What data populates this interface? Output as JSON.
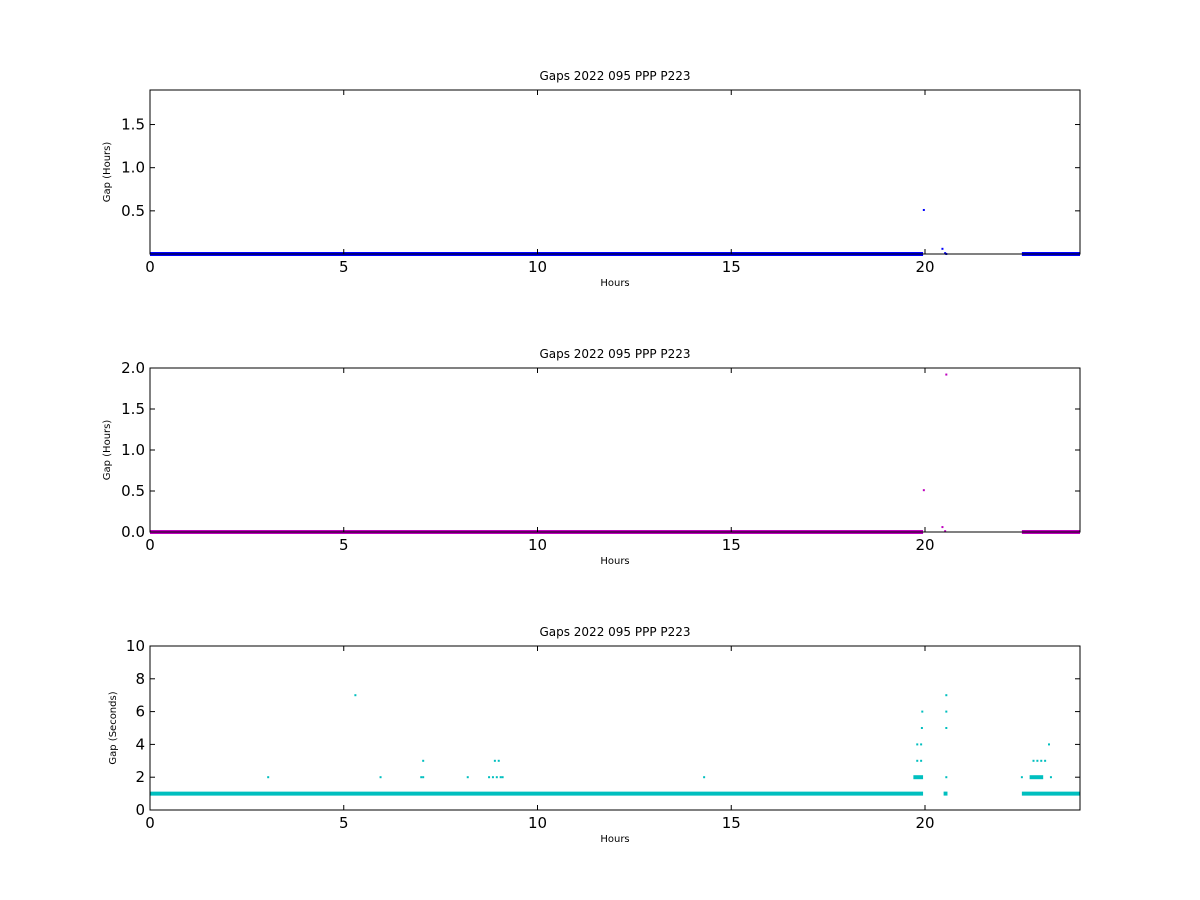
{
  "chart_data": [
    {
      "type": "scatter",
      "title": "Gaps 2022 095 PPP  P223",
      "xlabel": "Hours",
      "ylabel": "Gap (Hours)",
      "xlim": [
        0,
        24
      ],
      "ylim": [
        0,
        1.9
      ],
      "xticks": [
        0,
        5,
        10,
        15,
        20
      ],
      "yticks": [
        0.5,
        1.0,
        1.5
      ],
      "xtick_labels": [
        "0",
        "5",
        "10",
        "15",
        "20"
      ],
      "ytick_labels": [
        "0.5",
        "1.0",
        "1.5"
      ],
      "color": "#0000ff",
      "grid": false,
      "runs": [
        {
          "x_start": 0.0,
          "x_end": 19.95,
          "y": 0.0003
        },
        {
          "x_start": 22.5,
          "x_end": 24.0,
          "y": 0.0003
        }
      ],
      "points": [
        {
          "x": 19.97,
          "y": 0.51
        },
        {
          "x": 20.45,
          "y": 0.06
        },
        {
          "x": 20.52,
          "y": 0.01
        },
        {
          "x": 20.55,
          "y": 0.0
        }
      ]
    },
    {
      "type": "scatter",
      "title": "Gaps 2022 095 PPP  P223",
      "xlabel": "Hours",
      "ylabel": "Gap (Hours)",
      "xlim": [
        0,
        24
      ],
      "ylim": [
        0,
        2.0
      ],
      "xticks": [
        0,
        5,
        10,
        15,
        20
      ],
      "yticks": [
        0.0,
        0.5,
        1.0,
        1.5,
        2.0
      ],
      "xtick_labels": [
        "0",
        "5",
        "10",
        "15",
        "20"
      ],
      "ytick_labels": [
        "0.0",
        "0.5",
        "1.0",
        "1.5",
        "2.0"
      ],
      "color": "#bf00bf",
      "grid": false,
      "runs": [
        {
          "x_start": 0.0,
          "x_end": 19.95,
          "y": 0.0003
        },
        {
          "x_start": 22.5,
          "x_end": 24.0,
          "y": 0.0003
        }
      ],
      "points": [
        {
          "x": 19.97,
          "y": 0.51
        },
        {
          "x": 20.45,
          "y": 0.06
        },
        {
          "x": 20.52,
          "y": 0.01
        },
        {
          "x": 20.55,
          "y": 1.92
        }
      ]
    },
    {
      "type": "scatter",
      "title": "Gaps 2022 095 PPP  P223",
      "xlabel": "Hours",
      "ylabel": "Gap (Seconds)",
      "xlim": [
        0,
        24
      ],
      "ylim": [
        0,
        10
      ],
      "xticks": [
        0,
        5,
        10,
        15,
        20
      ],
      "yticks": [
        0,
        2,
        4,
        6,
        8,
        10
      ],
      "xtick_labels": [
        "0",
        "5",
        "10",
        "15",
        "20"
      ],
      "ytick_labels": [
        "0",
        "2",
        "4",
        "6",
        "8",
        "10"
      ],
      "color": "#00bfbf",
      "grid": false,
      "runs": [
        {
          "x_start": 0.0,
          "x_end": 19.95,
          "y": 1
        },
        {
          "x_start": 20.48,
          "x_end": 20.58,
          "y": 1
        },
        {
          "x_start": 22.5,
          "x_end": 24.0,
          "y": 1
        },
        {
          "x_start": 19.7,
          "x_end": 19.95,
          "y": 2
        },
        {
          "x_start": 22.7,
          "x_end": 23.05,
          "y": 2
        }
      ],
      "points": [
        {
          "x": 3.05,
          "y": 2
        },
        {
          "x": 5.3,
          "y": 7
        },
        {
          "x": 5.95,
          "y": 2
        },
        {
          "x": 7.0,
          "y": 2
        },
        {
          "x": 7.05,
          "y": 2
        },
        {
          "x": 7.05,
          "y": 3
        },
        {
          "x": 8.2,
          "y": 2
        },
        {
          "x": 8.75,
          "y": 2
        },
        {
          "x": 8.85,
          "y": 2
        },
        {
          "x": 8.9,
          "y": 3
        },
        {
          "x": 8.95,
          "y": 2
        },
        {
          "x": 9.0,
          "y": 3
        },
        {
          "x": 9.05,
          "y": 2
        },
        {
          "x": 9.1,
          "y": 2
        },
        {
          "x": 14.3,
          "y": 2
        },
        {
          "x": 19.8,
          "y": 3
        },
        {
          "x": 19.8,
          "y": 4
        },
        {
          "x": 19.9,
          "y": 3
        },
        {
          "x": 19.9,
          "y": 4
        },
        {
          "x": 19.92,
          "y": 5
        },
        {
          "x": 19.93,
          "y": 6
        },
        {
          "x": 20.55,
          "y": 2
        },
        {
          "x": 20.55,
          "y": 5
        },
        {
          "x": 20.55,
          "y": 6
        },
        {
          "x": 20.55,
          "y": 7
        },
        {
          "x": 22.5,
          "y": 2
        },
        {
          "x": 22.8,
          "y": 3
        },
        {
          "x": 22.9,
          "y": 3
        },
        {
          "x": 23.0,
          "y": 3
        },
        {
          "x": 23.1,
          "y": 3
        },
        {
          "x": 23.2,
          "y": 4
        },
        {
          "x": 23.25,
          "y": 2
        }
      ]
    }
  ]
}
